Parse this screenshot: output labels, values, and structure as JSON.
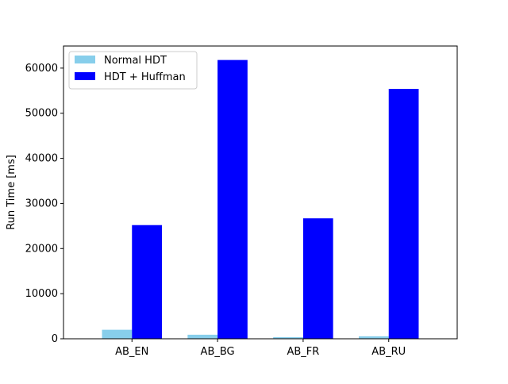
{
  "chart_data": {
    "type": "bar",
    "title": "",
    "xlabel": "",
    "ylabel": "Run Time [ms]",
    "categories": [
      "AB_EN",
      "AB_BG",
      "AB_FR",
      "AB_RU"
    ],
    "series": [
      {
        "name": "Normal HDT",
        "color": "#87ceeb",
        "values": [
          2000,
          900,
          350,
          550
        ]
      },
      {
        "name": "HDT + Huffman",
        "color": "#0000ff",
        "values": [
          25200,
          61800,
          26700,
          55400
        ]
      }
    ],
    "ylim": [
      0,
      64900
    ],
    "yticks": [
      0,
      10000,
      20000,
      30000,
      40000,
      50000,
      60000
    ],
    "grid": false,
    "legend_position": "top-left"
  }
}
